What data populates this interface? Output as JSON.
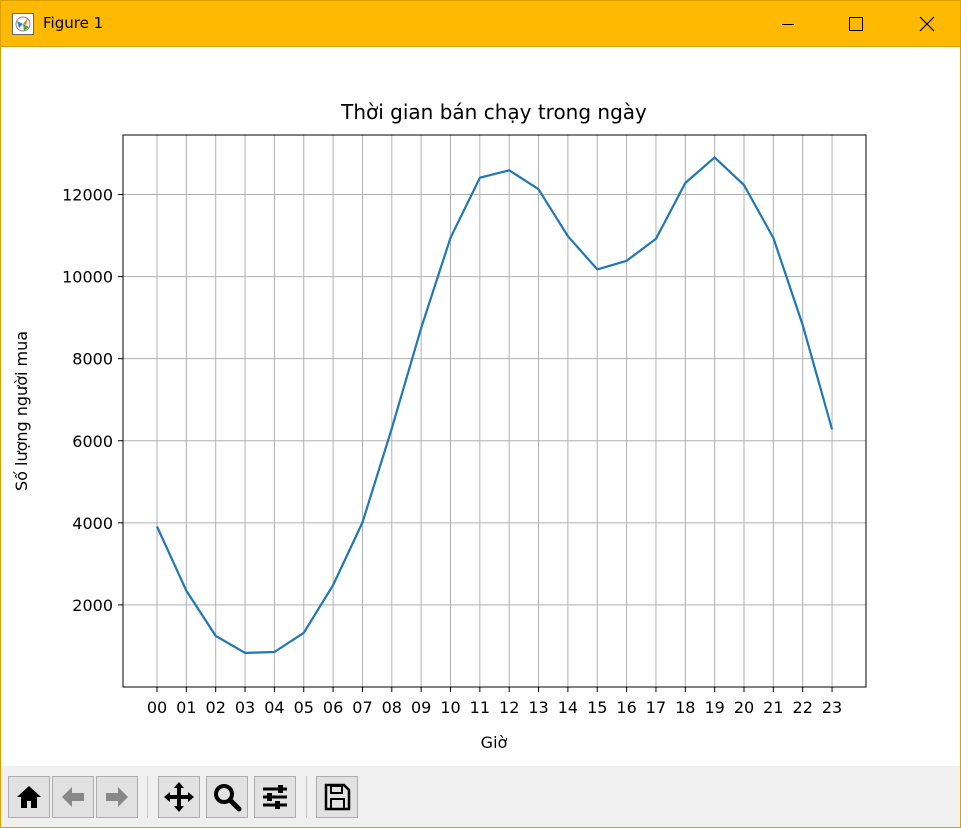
{
  "window": {
    "title": "Figure 1",
    "buttons": {
      "minimize": "minimize",
      "maximize": "maximize",
      "close": "close"
    },
    "accent_color": "#ffb900"
  },
  "toolbar": {
    "buttons": [
      {
        "name": "home-button",
        "icon": "home-icon"
      },
      {
        "name": "back-button",
        "icon": "arrow-left-icon"
      },
      {
        "name": "forward-button",
        "icon": "arrow-right-icon"
      },
      {
        "name": "pan-button",
        "icon": "move-icon"
      },
      {
        "name": "zoom-button",
        "icon": "search-icon"
      },
      {
        "name": "configure-subplots-button",
        "icon": "sliders-icon"
      },
      {
        "name": "save-button",
        "icon": "floppy-disk-icon"
      }
    ]
  },
  "chart_data": {
    "type": "line",
    "title": "Thời gian bán chạy trong ngày",
    "xlabel": "Giờ",
    "ylabel": "Số lượng người mua",
    "categories": [
      "00",
      "01",
      "02",
      "03",
      "04",
      "05",
      "06",
      "07",
      "08",
      "09",
      "10",
      "11",
      "12",
      "13",
      "14",
      "15",
      "16",
      "17",
      "18",
      "19",
      "20",
      "21",
      "22",
      "23"
    ],
    "series": [
      {
        "values": [
          3910,
          2350,
          1245,
          831,
          854,
          1321,
          2482,
          4011,
          6300,
          8750,
          10945,
          12410,
          12590,
          12130,
          10985,
          10175,
          10385,
          10920,
          12280,
          12905,
          12230,
          10940,
          8820,
          6275
        ],
        "color": "#1f77b4"
      }
    ],
    "yticks": [
      2000,
      4000,
      6000,
      8000,
      10000,
      12000
    ],
    "ylim": [
      0,
      13450
    ],
    "grid": true
  }
}
